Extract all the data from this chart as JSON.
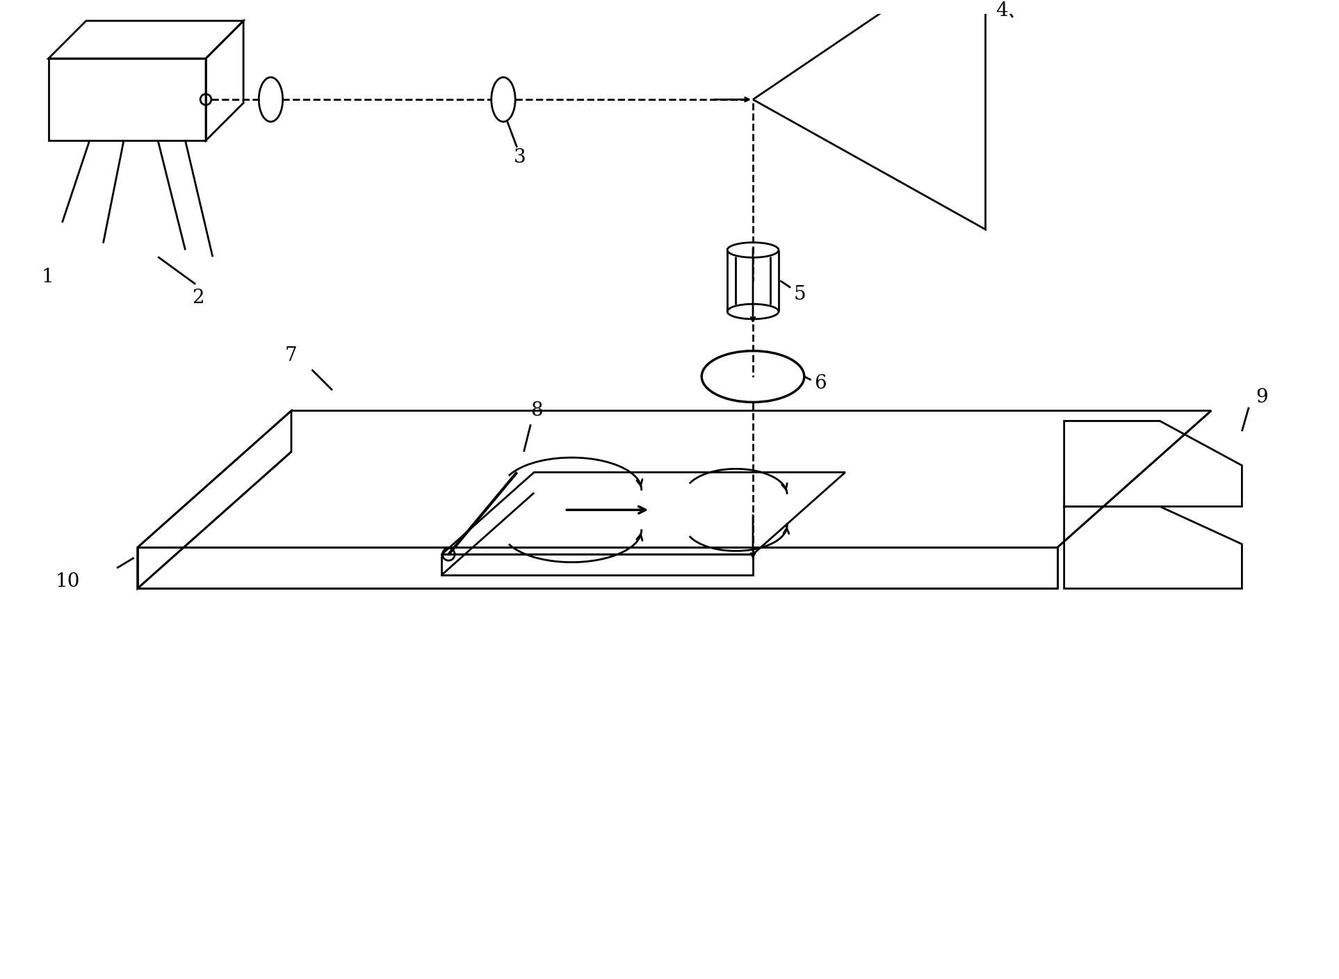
{
  "background_color": "#ffffff",
  "line_color": "#000000",
  "lw": 2.0,
  "label_fontsize": 20,
  "figsize": [
    19.26,
    14.08
  ],
  "dpi": 100
}
